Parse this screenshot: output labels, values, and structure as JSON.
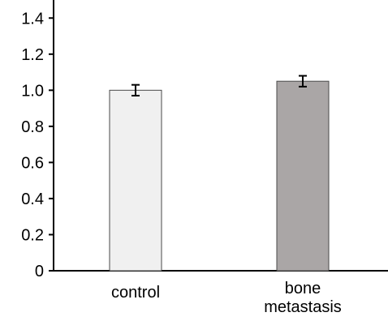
{
  "chart_data": {
    "type": "bar",
    "categories": [
      {
        "lines": [
          "control"
        ]
      },
      {
        "lines": [
          "bone",
          "metastasis"
        ]
      }
    ],
    "values": [
      1.0,
      1.05
    ],
    "errors": [
      0.03,
      0.03
    ],
    "bar_colors": [
      "#f0f0f0",
      "#aaa6a6"
    ],
    "ylim": [
      0,
      1.5
    ],
    "yticks": [
      0,
      0.2,
      0.4,
      0.6,
      0.8,
      1.0,
      1.2,
      1.4
    ],
    "ytick_labels": [
      "0",
      "0.2",
      "0.4",
      "0.6",
      "0.8",
      "1.0",
      "1.2",
      "1.4"
    ],
    "title": "",
    "xlabel": "",
    "ylabel": ""
  }
}
